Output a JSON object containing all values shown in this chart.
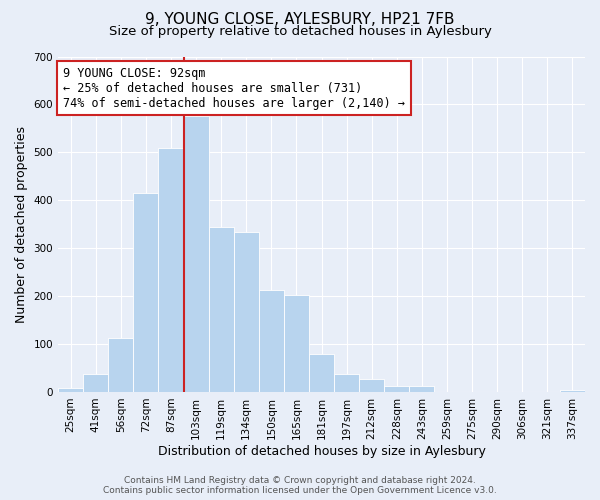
{
  "title": "9, YOUNG CLOSE, AYLESBURY, HP21 7FB",
  "subtitle": "Size of property relative to detached houses in Aylesbury",
  "xlabel": "Distribution of detached houses by size in Aylesbury",
  "ylabel": "Number of detached properties",
  "categories": [
    "25sqm",
    "41sqm",
    "56sqm",
    "72sqm",
    "87sqm",
    "103sqm",
    "119sqm",
    "134sqm",
    "150sqm",
    "165sqm",
    "181sqm",
    "197sqm",
    "212sqm",
    "228sqm",
    "243sqm",
    "259sqm",
    "275sqm",
    "290sqm",
    "306sqm",
    "321sqm",
    "337sqm"
  ],
  "values": [
    8,
    38,
    113,
    415,
    510,
    575,
    345,
    333,
    212,
    202,
    80,
    37,
    26,
    13,
    13,
    0,
    0,
    0,
    0,
    0,
    4
  ],
  "bar_color": "#b8d4ee",
  "bar_edge_color": "#b8d4ee",
  "vline_color": "#cc2222",
  "vline_x_index": 4,
  "annotation_line1": "9 YOUNG CLOSE: 92sqm",
  "annotation_line2": "← 25% of detached houses are smaller (731)",
  "annotation_line3": "74% of semi-detached houses are larger (2,140) →",
  "annotation_box_color": "#ffffff",
  "annotation_box_edge": "#cc2222",
  "ylim": [
    0,
    700
  ],
  "yticks": [
    0,
    100,
    200,
    300,
    400,
    500,
    600,
    700
  ],
  "footer_line1": "Contains HM Land Registry data © Crown copyright and database right 2024.",
  "footer_line2": "Contains public sector information licensed under the Open Government Licence v3.0.",
  "background_color": "#e8eef8",
  "plot_background": "#e8eef8",
  "grid_color": "#ffffff",
  "title_fontsize": 11,
  "subtitle_fontsize": 9.5,
  "axis_label_fontsize": 9,
  "tick_fontsize": 7.5,
  "annotation_fontsize": 8.5,
  "footer_fontsize": 6.5
}
